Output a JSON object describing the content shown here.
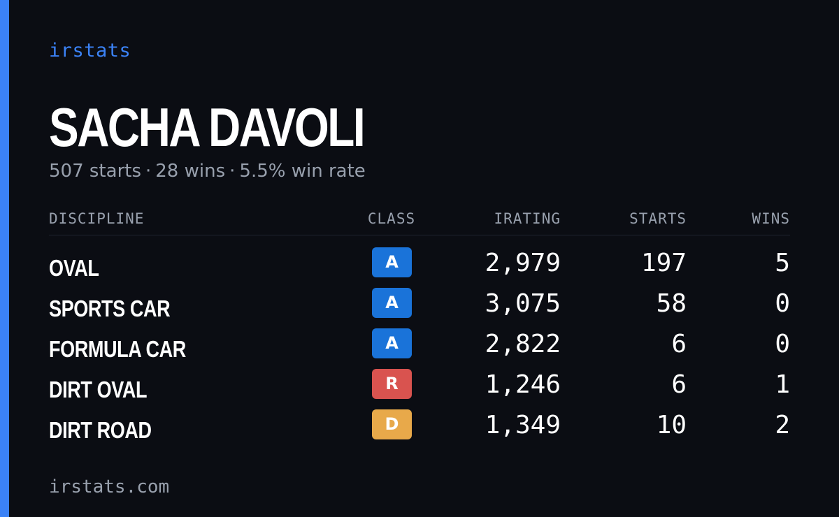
{
  "brand": "irstats",
  "driver": {
    "name": "SACHA DAVOLI",
    "starts_text": "507 starts",
    "wins_text": "28 wins",
    "win_rate_text": "5.5% win rate",
    "separator": "·"
  },
  "table": {
    "headers": {
      "discipline": "DISCIPLINE",
      "class": "CLASS",
      "irating": "IRATING",
      "starts": "STARTS",
      "wins": "WINS"
    },
    "rows": [
      {
        "discipline": "OVAL",
        "class": "A",
        "class_color": "#1a73d9",
        "irating": "2,979",
        "starts": "197",
        "wins": "5"
      },
      {
        "discipline": "SPORTS CAR",
        "class": "A",
        "class_color": "#1a73d9",
        "irating": "3,075",
        "starts": "58",
        "wins": "0"
      },
      {
        "discipline": "FORMULA CAR",
        "class": "A",
        "class_color": "#1a73d9",
        "irating": "2,822",
        "starts": "6",
        "wins": "0"
      },
      {
        "discipline": "DIRT OVAL",
        "class": "R",
        "class_color": "#d9534f",
        "irating": "1,246",
        "starts": "6",
        "wins": "1"
      },
      {
        "discipline": "DIRT ROAD",
        "class": "D",
        "class_color": "#e8a94a",
        "irating": "1,349",
        "starts": "10",
        "wins": "2"
      }
    ]
  },
  "footer": "irstats.com",
  "colors": {
    "background": "#0b0d13",
    "accent": "#3b82f6",
    "muted_text": "#98a0ad"
  }
}
